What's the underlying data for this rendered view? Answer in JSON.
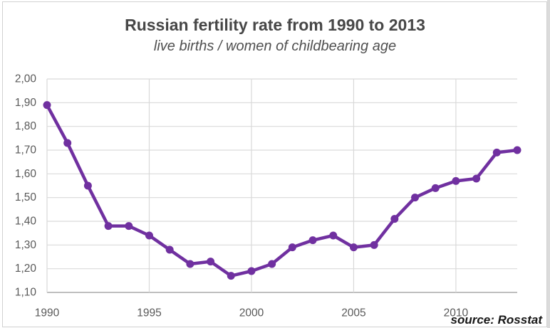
{
  "header": {
    "title": "Russian fertility rate from 1990 to 2013",
    "subtitle": "live births / women of childbearing age"
  },
  "footer": {
    "source": "source: Rosstat"
  },
  "colors": {
    "line": "#7030A0",
    "marker": "#7030A0",
    "grid": "#D9D9D9",
    "axis_line": "#BFBFBF",
    "title_text": "#474747",
    "tick_text": "#595959",
    "source_text": "#161616",
    "frame_border": "#D2D2D2",
    "background": "#FFFFFF"
  },
  "chart_data": {
    "type": "line",
    "title": "Russian fertility rate from 1990 to 2013",
    "subtitle": "live births / women of childbearing age",
    "source": "source: Rosstat",
    "xlabel": "",
    "ylabel": "",
    "x": [
      1990,
      1991,
      1992,
      1993,
      1994,
      1995,
      1996,
      1997,
      1998,
      1999,
      2000,
      2001,
      2002,
      2003,
      2004,
      2005,
      2006,
      2007,
      2008,
      2009,
      2010,
      2011,
      2012,
      2013
    ],
    "series": [
      {
        "name": "fertility rate (live births / women of childbearing age)",
        "values": [
          1.89,
          1.73,
          1.55,
          1.38,
          1.38,
          1.34,
          1.28,
          1.22,
          1.23,
          1.17,
          1.19,
          1.22,
          1.29,
          1.32,
          1.34,
          1.29,
          1.3,
          1.41,
          1.5,
          1.54,
          1.57,
          1.58,
          1.69,
          1.7
        ]
      }
    ],
    "xlim": [
      1990,
      2013
    ],
    "ylim": [
      1.1,
      2.0
    ],
    "x_ticks": [
      1990,
      1995,
      2000,
      2005,
      2010
    ],
    "x_tick_labels": [
      "1990",
      "1995",
      "2000",
      "2005",
      "2010"
    ],
    "y_ticks": [
      1.1,
      1.2,
      1.3,
      1.4,
      1.5,
      1.6,
      1.7,
      1.8,
      1.9,
      2.0
    ],
    "y_tick_labels": [
      "1,10",
      "1,20",
      "1,30",
      "1,40",
      "1,50",
      "1,60",
      "1,70",
      "1,80",
      "1,90",
      "2,00"
    ],
    "grid": true,
    "legend_position": "none",
    "marker": "circle"
  }
}
